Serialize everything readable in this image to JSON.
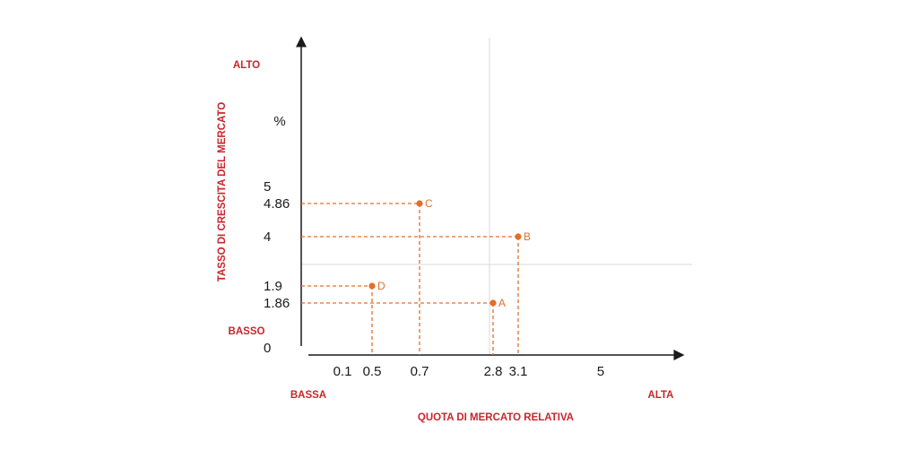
{
  "chart_data": {
    "type": "scatter",
    "title": "",
    "xlabel": "QUOTA DI MERCATO RELATIVA",
    "ylabel": "TASSO DI CRESCITA DEL MERCATO",
    "y_unit": "%",
    "x_low_label": "BASSA",
    "x_high_label": "ALTA",
    "y_low_label": "BASSO",
    "y_high_label": "ALTO",
    "x_ticks": [
      "0.1",
      "0.5",
      "0.7",
      "2.8",
      "3.1",
      "5"
    ],
    "y_ticks": [
      "0",
      "1.86",
      "1.9",
      "4",
      "4.86",
      "5"
    ],
    "points": [
      {
        "label": "A",
        "x": 2.8,
        "y": 1.86
      },
      {
        "label": "B",
        "x": 3.1,
        "y": 4
      },
      {
        "label": "C",
        "x": 0.7,
        "y": 4.86
      },
      {
        "label": "D",
        "x": 0.5,
        "y": 1.9
      }
    ],
    "grid": false,
    "point_color": "#e0702a",
    "axis_color": "#1a1a1a",
    "label_color": "#c8262c"
  }
}
